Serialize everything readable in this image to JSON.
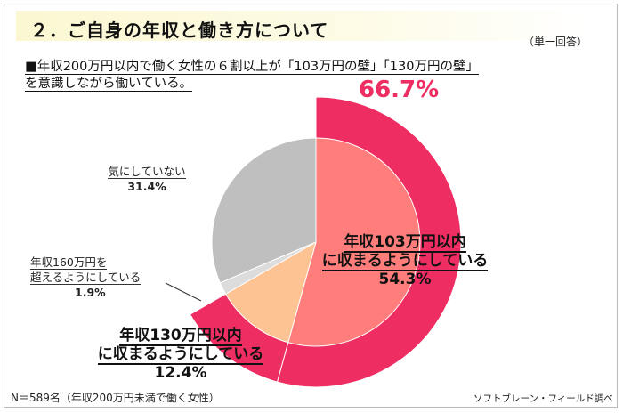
{
  "header": {
    "title": "２．ご自身の年収と働き方について",
    "answer_type": "（単一回答）"
  },
  "headline": {
    "line1": "■年収200万円以内で働く女性の６割以上が「103万円の壁」「130万円の壁」",
    "line2": "を意識しながら働いている。"
  },
  "highlight": {
    "value": "66.7%",
    "color": "#ee2e62"
  },
  "chart_data": {
    "type": "pie",
    "slices": [
      {
        "label": "年収103万円以内に収まるようにしている",
        "line1": "年収103万円以内",
        "line2": "に収まるようにしている",
        "value": 54.3,
        "value_label": "54.3%",
        "inner_color": "#ff7e7c"
      },
      {
        "label": "年収130万円以内に収まるようにしている",
        "line1": "年収130万円以内",
        "line2": "に収まるようにしている",
        "value": 12.4,
        "value_label": "12.4%",
        "inner_color": "#fec393"
      },
      {
        "label": "年収160万円を超えるようにしている",
        "line1": "年収160万円を",
        "line2": "超えるようにしている",
        "value": 1.9,
        "value_label": "1.9%",
        "inner_color": "#dcdcdc"
      },
      {
        "label": "気にしていない",
        "line1": "気にしていない",
        "line2": "",
        "value": 31.4,
        "value_label": "31.4%",
        "inner_color": "#bfbfbf"
      }
    ],
    "highlight_ring": {
      "covers": [
        "年収103万円以内に収まるようにしている",
        "年収130万円以内に収まるようにしている"
      ],
      "total": 66.7,
      "color": "#ee2e62"
    }
  },
  "footer": {
    "note": "N＝589名（年収200万円未満で働く女性）",
    "source": "ソフトブレーン・フィールド調べ"
  }
}
